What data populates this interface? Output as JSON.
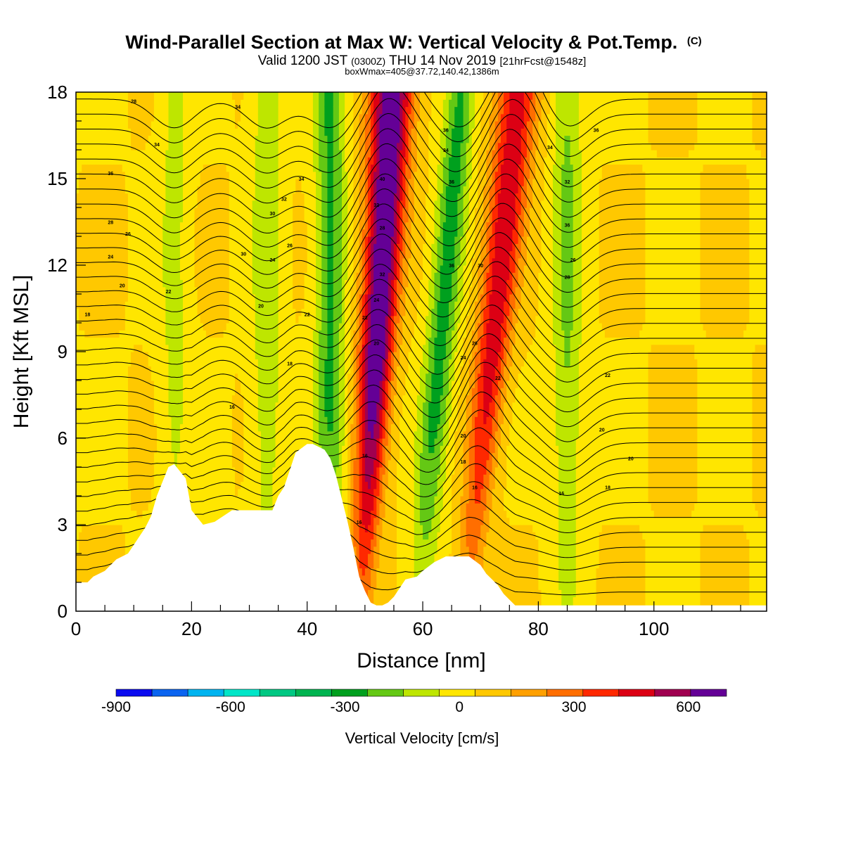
{
  "header": {
    "title": "Wind-Parallel Section at Max W: Vertical Velocity & Pot.Temp.",
    "title_mark": "(C)",
    "valid_prefix": "Valid 1200 JST",
    "valid_utc": "(0300Z)",
    "valid_date": "THU 14 Nov 2019",
    "forecast": "[21hrFcst@1548z]",
    "boxwmax": "boxWmax=405@37.72,140.42,1386m"
  },
  "chart_data": {
    "type": "heatmap",
    "title": "Wind-Parallel Section at Max W: Vertical Velocity & Pot.Temp.",
    "xlabel": "Distance [nm]",
    "ylabel": "Height [Kft MSL]",
    "xlim": [
      0,
      119.5
    ],
    "ylim": [
      0,
      18
    ],
    "xticks": [
      0,
      20,
      40,
      60,
      80,
      100
    ],
    "yticks": [
      0,
      3,
      6,
      9,
      12,
      15,
      18
    ],
    "colorbar": {
      "title": "Vertical Velocity [cm/s]",
      "range": [
        -900,
        700
      ],
      "labels": [
        -900,
        -600,
        -300,
        0,
        300,
        600
      ],
      "colors": [
        "#0a0af0",
        "#0a64f0",
        "#00b4f0",
        "#00e6c8",
        "#00c882",
        "#00b450",
        "#00a01e",
        "#64c814",
        "#bee600",
        "#ffe600",
        "#ffc800",
        "#ffa000",
        "#ff6e00",
        "#ff2800",
        "#dc0014",
        "#a00050",
        "#640096"
      ]
    },
    "velocity_features": [
      {
        "kind": "updraft",
        "x_center": 52,
        "tilt": 0.3,
        "peak_cms": 700
      },
      {
        "kind": "updraft",
        "x_center": 72,
        "tilt": 0.5,
        "peak_cms": 450
      },
      {
        "kind": "downdraft",
        "x_center": 44,
        "tilt": 0.0,
        "peak_cms": -300
      },
      {
        "kind": "downdraft",
        "x_center": 63,
        "tilt": 0.4,
        "peak_cms": -320
      },
      {
        "kind": "downdraft",
        "x_center": 85,
        "tilt": 0.0,
        "peak_cms": -200
      },
      {
        "kind": "downdraft",
        "x_center": 17,
        "tilt": 0.0,
        "peak_cms": -120
      },
      {
        "kind": "downdraft",
        "x_center": 33,
        "tilt": 0.0,
        "peak_cms": -160
      }
    ],
    "terrain": {
      "x": [
        0,
        2,
        3,
        5,
        6,
        7,
        9,
        10,
        11,
        12,
        13,
        14,
        16,
        17,
        19,
        20,
        22,
        24,
        27,
        30,
        34,
        35,
        36,
        37,
        38,
        40,
        41,
        43,
        44,
        45,
        46,
        47,
        48,
        49,
        50,
        51,
        52,
        53,
        54,
        55,
        56,
        57,
        59,
        60,
        62,
        64,
        66,
        68,
        70,
        71,
        72,
        73,
        74,
        75,
        76,
        78,
        119.5
      ],
      "height_kft": [
        1.0,
        1.0,
        1.2,
        1.4,
        1.6,
        1.8,
        2.0,
        2.3,
        2.6,
        2.9,
        3.3,
        4.0,
        5.0,
        5.1,
        4.6,
        3.5,
        3.0,
        3.1,
        3.5,
        3.5,
        3.5,
        4.0,
        4.3,
        4.9,
        5.5,
        5.8,
        5.8,
        5.6,
        5.3,
        4.7,
        3.9,
        3.1,
        2.2,
        1.2,
        0.7,
        0.3,
        0.2,
        0.2,
        0.3,
        0.5,
        0.8,
        1.1,
        1.2,
        1.4,
        1.7,
        1.9,
        1.9,
        1.9,
        1.6,
        1.3,
        1.1,
        0.9,
        0.6,
        0.4,
        0.2,
        0.2,
        0.2
      ]
    },
    "theta_labels": [
      {
        "x": 10,
        "y": 17.7,
        "label": "28"
      },
      {
        "x": 28,
        "y": 17.5,
        "label": "34"
      },
      {
        "x": 14,
        "y": 16.2,
        "label": "34"
      },
      {
        "x": 6,
        "y": 15.2,
        "label": "36"
      },
      {
        "x": 39,
        "y": 15.0,
        "label": "34"
      },
      {
        "x": 36,
        "y": 14.3,
        "label": "32"
      },
      {
        "x": 34,
        "y": 13.8,
        "label": "30"
      },
      {
        "x": 6,
        "y": 13.5,
        "label": "28"
      },
      {
        "x": 9,
        "y": 13.1,
        "label": "26"
      },
      {
        "x": 37,
        "y": 12.7,
        "label": "26"
      },
      {
        "x": 6,
        "y": 12.3,
        "label": "24"
      },
      {
        "x": 29,
        "y": 12.4,
        "label": "30"
      },
      {
        "x": 34,
        "y": 12.2,
        "label": "24"
      },
      {
        "x": 8,
        "y": 11.3,
        "label": "20"
      },
      {
        "x": 16,
        "y": 11.1,
        "label": "22"
      },
      {
        "x": 2,
        "y": 10.3,
        "label": "18"
      },
      {
        "x": 32,
        "y": 10.6,
        "label": "20"
      },
      {
        "x": 40,
        "y": 10.3,
        "label": "22"
      },
      {
        "x": 37,
        "y": 8.6,
        "label": "18"
      },
      {
        "x": 27,
        "y": 7.1,
        "label": "16"
      },
      {
        "x": 53,
        "y": 15.0,
        "label": "40"
      },
      {
        "x": 52,
        "y": 14.1,
        "label": "32"
      },
      {
        "x": 53,
        "y": 13.3,
        "label": "28"
      },
      {
        "x": 53,
        "y": 11.7,
        "label": "32"
      },
      {
        "x": 52,
        "y": 10.8,
        "label": "24"
      },
      {
        "x": 50,
        "y": 10.2,
        "label": "22"
      },
      {
        "x": 52,
        "y": 9.3,
        "label": "20"
      },
      {
        "x": 50,
        "y": 5.4,
        "label": "16"
      },
      {
        "x": 49,
        "y": 3.1,
        "label": "16"
      },
      {
        "x": 64,
        "y": 16.7,
        "label": "36"
      },
      {
        "x": 64,
        "y": 16.0,
        "label": "34"
      },
      {
        "x": 65,
        "y": 14.9,
        "label": "36"
      },
      {
        "x": 65,
        "y": 12.0,
        "label": "36"
      },
      {
        "x": 70,
        "y": 12.0,
        "label": "30"
      },
      {
        "x": 69,
        "y": 9.3,
        "label": "26"
      },
      {
        "x": 67,
        "y": 8.8,
        "label": "24"
      },
      {
        "x": 73,
        "y": 8.1,
        "label": "22"
      },
      {
        "x": 67,
        "y": 6.1,
        "label": "20"
      },
      {
        "x": 67,
        "y": 5.2,
        "label": "18"
      },
      {
        "x": 69,
        "y": 4.3,
        "label": "16"
      },
      {
        "x": 82,
        "y": 16.1,
        "label": "34"
      },
      {
        "x": 90,
        "y": 16.7,
        "label": "36"
      },
      {
        "x": 85,
        "y": 14.9,
        "label": "32"
      },
      {
        "x": 85,
        "y": 13.4,
        "label": "36"
      },
      {
        "x": 86,
        "y": 12.2,
        "label": "26"
      },
      {
        "x": 85,
        "y": 11.6,
        "label": "28"
      },
      {
        "x": 92,
        "y": 8.2,
        "label": "22"
      },
      {
        "x": 91,
        "y": 6.3,
        "label": "20"
      },
      {
        "x": 96,
        "y": 5.3,
        "label": "20"
      },
      {
        "x": 92,
        "y": 4.3,
        "label": "18"
      },
      {
        "x": 84,
        "y": 4.1,
        "label": "16"
      }
    ]
  }
}
